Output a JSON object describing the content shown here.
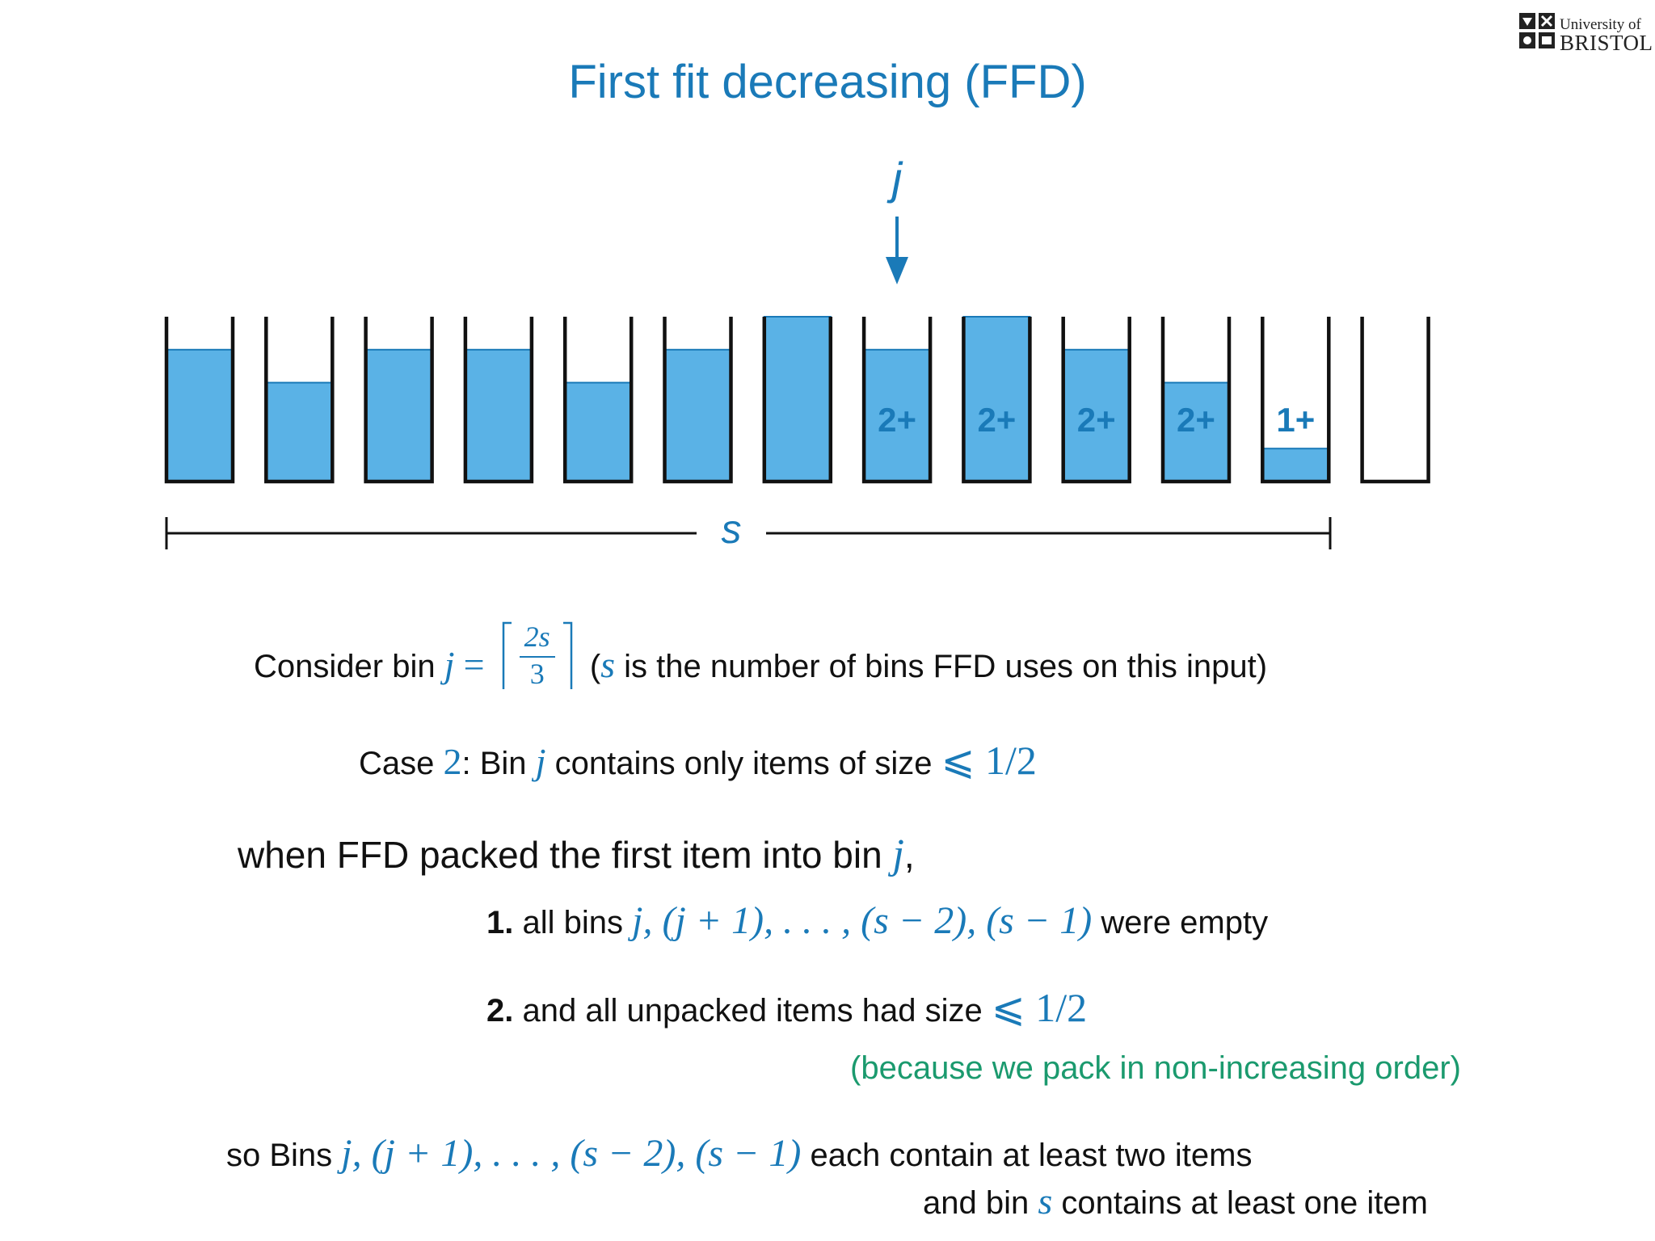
{
  "title": "First fit decreasing (FFD)",
  "logo": {
    "line1": "University of",
    "line2": "BRISTOL"
  },
  "colors": {
    "accent": "#1a7ab8",
    "fill": "#5ab2e6",
    "green": "#1b9a6e"
  },
  "diagram": {
    "pointer_label": "j",
    "span_label": "s",
    "bins": [
      {
        "fill": 0.8,
        "label": ""
      },
      {
        "fill": 0.6,
        "label": ""
      },
      {
        "fill": 0.8,
        "label": ""
      },
      {
        "fill": 0.8,
        "label": ""
      },
      {
        "fill": 0.6,
        "label": ""
      },
      {
        "fill": 0.8,
        "label": ""
      },
      {
        "fill": 1.0,
        "label": ""
      },
      {
        "fill": 0.8,
        "label": "2+"
      },
      {
        "fill": 1.0,
        "label": "2+"
      },
      {
        "fill": 0.8,
        "label": "2+"
      },
      {
        "fill": 0.6,
        "label": "2+"
      },
      {
        "fill": 0.2,
        "label": "1+"
      },
      {
        "fill": 0.0,
        "label": ""
      }
    ]
  },
  "text": {
    "consider_pre": "Consider bin",
    "j": "j",
    "eq": "=",
    "frac_num": "2s",
    "frac_den": "3",
    "consider_paren_open": "(",
    "s": "s",
    "consider_post": "is the number of bins FFD uses on this input)",
    "case_pre": "Case",
    "case_num": "2",
    "case_mid": ": Bin",
    "case_post": "contains only items of size",
    "le_half": "⩽ 1/2",
    "when_pre": "when FFD packed the first item into bin",
    "when_post": ",",
    "item1_num": "1.",
    "item1_pre": "all bins",
    "bins_seq": "j, (j + 1), . . . , (s − 2), (s − 1)",
    "item1_post": "were empty",
    "item2_num": "2.",
    "item2_pre": "and all unpacked items had size",
    "because": "(because we pack in non-increasing order)",
    "so_pre": "so Bins",
    "so_post": "each contain at least two items",
    "and_pre": "and bin",
    "and_post": "contains at least one item"
  }
}
